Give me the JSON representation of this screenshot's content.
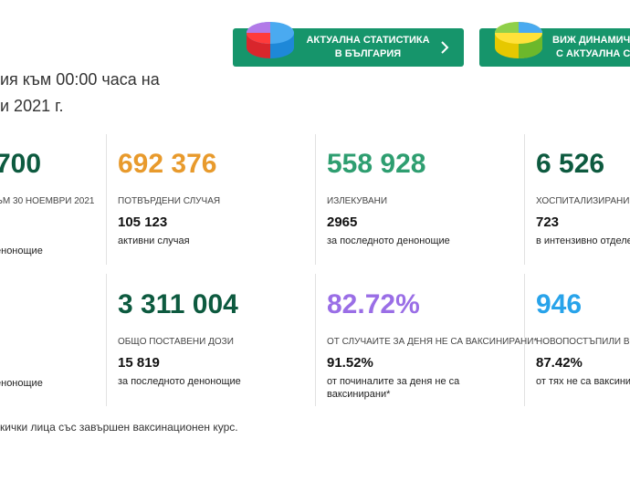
{
  "header": {
    "lines": [
      "ия към 00:00 часа на",
      "и 2021 г."
    ]
  },
  "buttons": [
    {
      "line1": "АКТУАЛНА СТАТИСТИКА",
      "line2": "В БЪЛГАРИЯ"
    },
    {
      "line1": "ВИЖ ДИНАМИЧ",
      "line2": "С АКТУАЛНА СТ"
    }
  ],
  "stats": [
    {
      "value": "700",
      "label": "ЪМ 30 НОЕМВРИ 2021",
      "detail_text": "енонощие"
    },
    {
      "value": "692 376",
      "label": "ПОТВЪРДЕНИ СЛУЧАЯ",
      "detail_value": "105 123",
      "detail_text": "активни случая"
    },
    {
      "value": "558 928",
      "label": "ИЗЛЕКУВАНИ",
      "detail_value": "2965",
      "detail_text": "за последното денонощие"
    },
    {
      "value": "6 526",
      "label": "ХОСПИТАЛИЗИРАНИ",
      "detail_value": "723",
      "detail_text": "в интензивно отделе"
    },
    {
      "detail_text": "енонощие"
    },
    {
      "value": "3 311 004",
      "label": "ОБЩО ПОСТАВЕНИ ДОЗИ",
      "detail_value": "15 819",
      "detail_text": "за последното денонощие"
    },
    {
      "value": "82.72%",
      "label": "ОТ СЛУЧАИТЕ ЗА ДЕНЯ НЕ СА ВАКСИНИРАНИ*",
      "detail_value": "91.52%",
      "detail_text": "от починалите за деня не са ваксинирани*"
    },
    {
      "value": "946",
      "label": "НОВОПОСТЪПИЛИ В БО",
      "detail_value": "87.42%",
      "detail_text": "от тях не са ваксини"
    }
  ],
  "footnote": "кички лица със завършен ваксинационен курс."
}
